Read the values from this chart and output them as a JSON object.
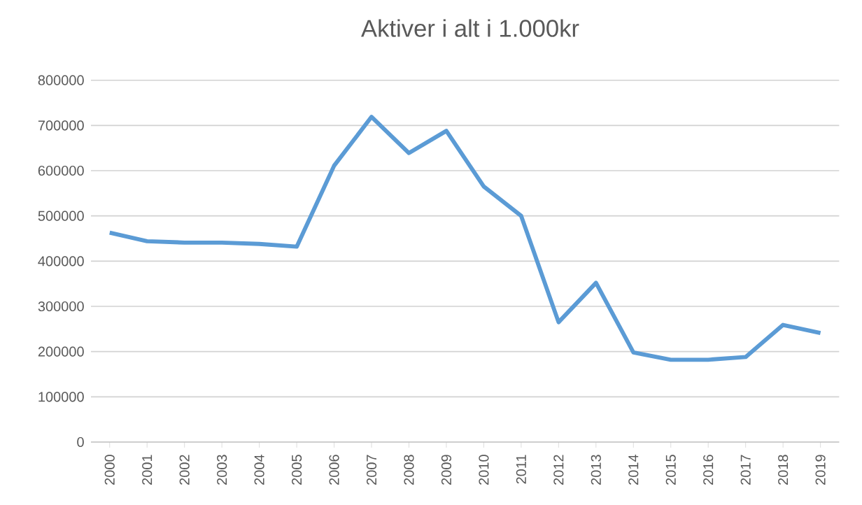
{
  "chart_data": {
    "type": "line",
    "title": "Aktiver i alt i 1.000kr",
    "categories": [
      "2000",
      "2001",
      "2002",
      "2003",
      "2004",
      "2005",
      "2006",
      "2007",
      "2008",
      "2009",
      "2010",
      "2011",
      "2012",
      "2013",
      "2014",
      "2015",
      "2016",
      "2017",
      "2018",
      "2019"
    ],
    "values": [
      463000,
      444000,
      441000,
      441000,
      438000,
      432000,
      611000,
      719000,
      639000,
      688000,
      565000,
      500000,
      265000,
      352000,
      198000,
      182000,
      182000,
      188000,
      259000,
      241000
    ],
    "color": "#5b9bd5",
    "ylim": [
      0,
      800000
    ],
    "yticks": [
      0,
      100000,
      200000,
      300000,
      400000,
      500000,
      600000,
      700000,
      800000
    ],
    "grid": "y",
    "marker": "none",
    "line_style": "solid"
  }
}
